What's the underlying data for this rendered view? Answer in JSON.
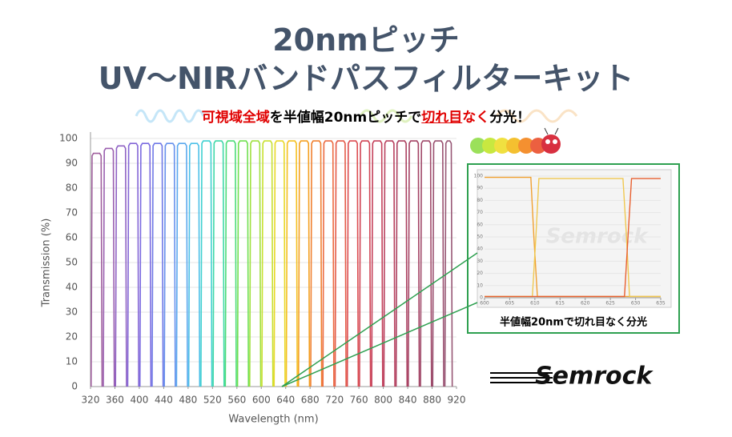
{
  "header": {
    "title_line1": "20nmピッチ",
    "title_line2": "UV～NIRバンドパスフィルターキット",
    "subtitle": [
      {
        "text": "可視域全域",
        "style": "red"
      },
      {
        "text": "を半値幅20nmピッチで",
        "style": "black"
      },
      {
        "text": "切れ目",
        "style": "red-underline"
      },
      {
        "text": "なく",
        "style": "red"
      },
      {
        "text": "分光！",
        "style": "black"
      }
    ]
  },
  "chart_data": [
    {
      "type": "bandpass",
      "xlabel": "Wavelength (nm)",
      "ylabel": "Transmission (%)",
      "xlim": [
        320,
        920
      ],
      "xticks": [
        320,
        360,
        400,
        440,
        480,
        520,
        560,
        600,
        640,
        680,
        720,
        760,
        800,
        840,
        880,
        920
      ],
      "ylim": [
        0,
        100
      ],
      "yticks": [
        0,
        10,
        20,
        30,
        40,
        50,
        60,
        70,
        80,
        90,
        100
      ],
      "bands": [
        {
          "start": 321,
          "end": 339,
          "peak": 94,
          "color": "#a0609e"
        },
        {
          "start": 341,
          "end": 359,
          "peak": 96,
          "color": "#9a5fb0"
        },
        {
          "start": 361,
          "end": 379,
          "peak": 97,
          "color": "#8f62c4"
        },
        {
          "start": 381,
          "end": 399,
          "peak": 98,
          "color": "#8466d6"
        },
        {
          "start": 401,
          "end": 419,
          "peak": 98,
          "color": "#7a6ae0"
        },
        {
          "start": 421,
          "end": 439,
          "peak": 98,
          "color": "#6f78e6"
        },
        {
          "start": 441,
          "end": 459,
          "peak": 98,
          "color": "#6690ec"
        },
        {
          "start": 461,
          "end": 479,
          "peak": 98,
          "color": "#5aa8ee"
        },
        {
          "start": 481,
          "end": 499,
          "peak": 98,
          "color": "#4cc0e8"
        },
        {
          "start": 501,
          "end": 519,
          "peak": 99,
          "color": "#3fd0d0"
        },
        {
          "start": 521,
          "end": 539,
          "peak": 99,
          "color": "#3ed8a8"
        },
        {
          "start": 541,
          "end": 559,
          "peak": 99,
          "color": "#4cdc78"
        },
        {
          "start": 561,
          "end": 579,
          "peak": 99,
          "color": "#70e050"
        },
        {
          "start": 581,
          "end": 599,
          "peak": 99,
          "color": "#a0e040"
        },
        {
          "start": 601,
          "end": 619,
          "peak": 99,
          "color": "#c8e030"
        },
        {
          "start": 621,
          "end": 639,
          "peak": 99,
          "color": "#e8d828"
        },
        {
          "start": 641,
          "end": 659,
          "peak": 99,
          "color": "#f4c020"
        },
        {
          "start": 661,
          "end": 679,
          "peak": 99,
          "color": "#f4a020"
        },
        {
          "start": 681,
          "end": 699,
          "peak": 99,
          "color": "#f08030"
        },
        {
          "start": 701,
          "end": 719,
          "peak": 99,
          "color": "#ec6a40"
        },
        {
          "start": 721,
          "end": 739,
          "peak": 99,
          "color": "#e45a48"
        },
        {
          "start": 741,
          "end": 759,
          "peak": 99,
          "color": "#dc4c50"
        },
        {
          "start": 761,
          "end": 779,
          "peak": 99,
          "color": "#d04454"
        },
        {
          "start": 781,
          "end": 799,
          "peak": 99,
          "color": "#c4405a"
        },
        {
          "start": 801,
          "end": 819,
          "peak": 99,
          "color": "#b8405e"
        },
        {
          "start": 821,
          "end": 839,
          "peak": 99,
          "color": "#ac4060"
        },
        {
          "start": 841,
          "end": 859,
          "peak": 99,
          "color": "#a44264"
        },
        {
          "start": 861,
          "end": 879,
          "peak": 99,
          "color": "#a04a6a"
        },
        {
          "start": 881,
          "end": 899,
          "peak": 99,
          "color": "#9a5070"
        },
        {
          "start": 901,
          "end": 913,
          "peak": 99,
          "color": "#985876"
        }
      ]
    },
    {
      "type": "line",
      "watermark": "Semrock",
      "caption": "半値幅20nmで切れ目なく分光",
      "xlim": [
        600,
        635
      ],
      "xticks": [
        600,
        605,
        610,
        615,
        620,
        625,
        630,
        635
      ],
      "ylim": [
        0,
        100
      ],
      "yticks": [
        0,
        10,
        20,
        30,
        40,
        50,
        60,
        70,
        80,
        90,
        100
      ],
      "series": [
        {
          "color": "#f0a030",
          "x": [
            600,
            609.2,
            609.8,
            610.5,
            635
          ],
          "values": [
            99,
            99,
            50,
            1,
            1
          ]
        },
        {
          "color": "#f0c850",
          "x": [
            600,
            609.5,
            610.2,
            610.8,
            627.5,
            628.2,
            628.8,
            635
          ],
          "values": [
            1,
            1,
            50,
            98,
            98,
            50,
            1,
            1
          ]
        },
        {
          "color": "#e86030",
          "x": [
            600,
            627.8,
            628.5,
            629.2,
            635
          ],
          "values": [
            1,
            1,
            50,
            98,
            98
          ]
        }
      ]
    }
  ],
  "logo": "Semrock"
}
